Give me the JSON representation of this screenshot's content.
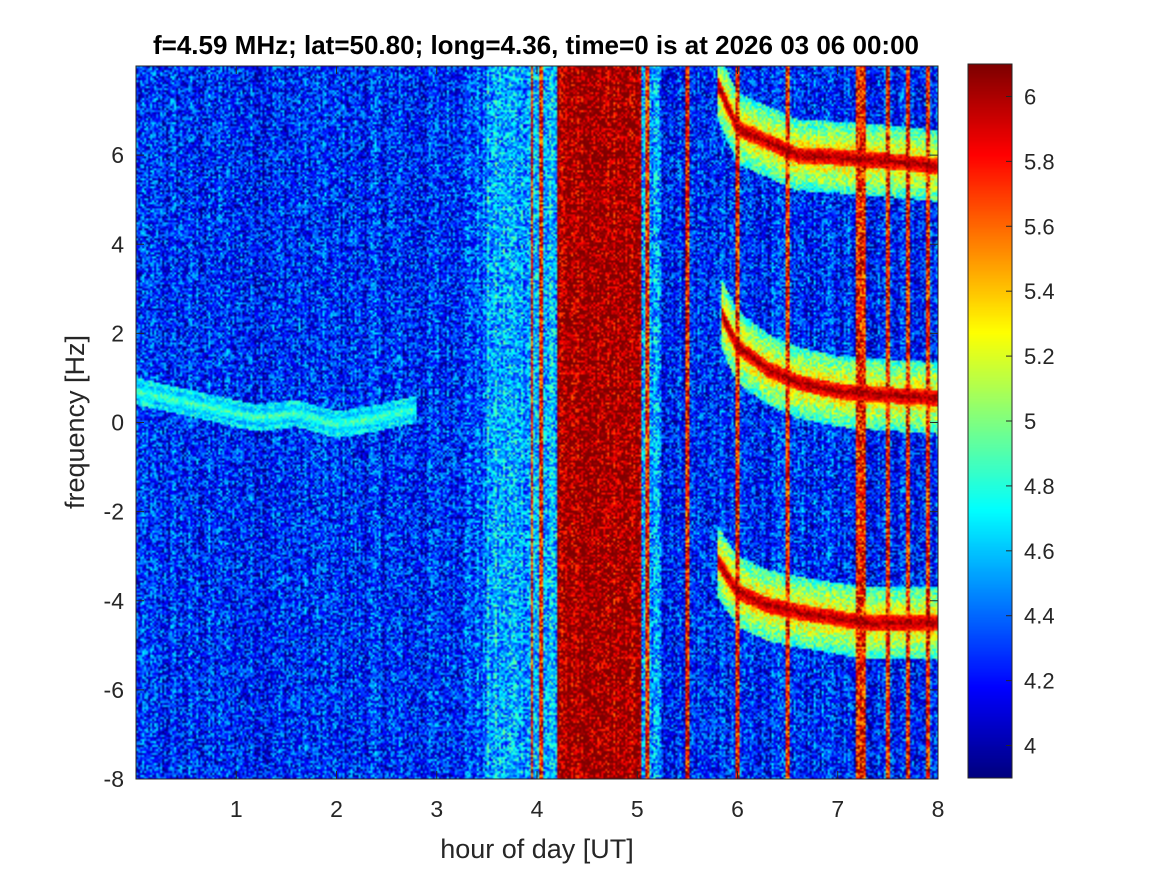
{
  "chart_data": {
    "type": "heatmap",
    "title": "f=4.59 MHz;  lat=50.80; long=4.36, time=0 is at 2026 03 06 00:00",
    "xlabel": "hour of day [UT]",
    "ylabel": "frequency [Hz]",
    "xlim": [
      0,
      8
    ],
    "ylim": [
      -8,
      8
    ],
    "xticks": [
      1,
      2,
      3,
      4,
      5,
      6,
      7,
      8
    ],
    "yticks": [
      -8,
      -6,
      -4,
      -2,
      0,
      2,
      4,
      6
    ],
    "colormap": "jet",
    "colorbar": {
      "range": [
        3.9,
        6.1
      ],
      "ticks": [
        4,
        4.2,
        4.4,
        4.6,
        4.8,
        5,
        5.2,
        5.4,
        5.6,
        5.8,
        6
      ],
      "tick_labels": [
        "4",
        "4.2",
        "4.4",
        "4.6",
        "4.8",
        "5",
        "5.2",
        "5.4",
        "5.6",
        "5.8",
        "6"
      ]
    },
    "background_level": 4.25,
    "broadband_bands": [
      {
        "x_start": 4.2,
        "x_end": 5.05,
        "value": 6.05
      },
      {
        "x_start": 3.5,
        "x_end": 4.2,
        "value": 4.55
      },
      {
        "x_start": 5.05,
        "x_end": 5.25,
        "value": 4.5
      }
    ],
    "vertical_lines_x": [
      3.95,
      4.05,
      5.1,
      5.5,
      6.0,
      6.5,
      7.2,
      7.25,
      7.5,
      7.7,
      7.9
    ],
    "doppler_traces": [
      {
        "x": [
          0.0,
          0.4,
          0.8,
          1.2,
          1.6,
          2.0,
          2.4,
          2.8
        ],
        "y": [
          0.7,
          0.5,
          0.3,
          0.1,
          0.2,
          -0.05,
          0.1,
          0.3
        ],
        "value": 4.9
      },
      {
        "x": [
          5.8,
          6.0,
          6.3,
          6.6,
          7.0,
          7.3,
          7.6,
          8.0
        ],
        "y": [
          7.6,
          6.6,
          6.3,
          6.0,
          5.95,
          5.9,
          5.85,
          5.75
        ],
        "value": 6.05
      },
      {
        "x": [
          5.85,
          6.0,
          6.3,
          6.6,
          7.0,
          7.3,
          7.6,
          8.0
        ],
        "y": [
          2.4,
          1.7,
          1.2,
          0.9,
          0.7,
          0.65,
          0.6,
          0.55
        ],
        "value": 6.05
      },
      {
        "x": [
          5.8,
          6.0,
          6.3,
          6.6,
          7.0,
          7.3,
          7.6,
          8.0
        ],
        "y": [
          -3.1,
          -3.8,
          -4.1,
          -4.25,
          -4.4,
          -4.5,
          -4.5,
          -4.5
        ],
        "value": 6.05
      }
    ]
  }
}
